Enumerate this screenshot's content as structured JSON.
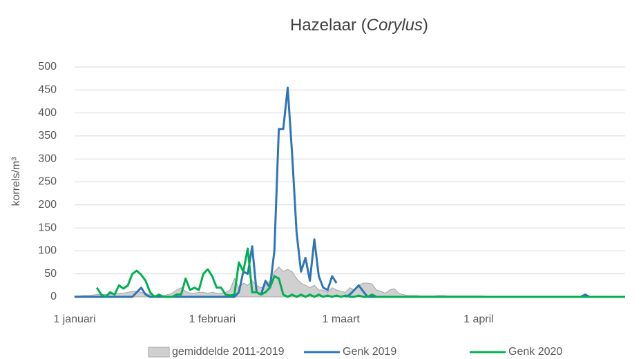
{
  "chart_data": {
    "type": "line",
    "title": [
      "Hazelaar (",
      "Corylus",
      ")"
    ],
    "y_label": "korrels/m³",
    "categories": [
      "1 januari",
      null,
      null,
      null,
      null,
      null,
      null,
      null,
      null,
      null,
      null,
      null,
      null,
      null,
      null,
      null,
      null,
      null,
      null,
      null,
      null,
      null,
      null,
      null,
      null,
      null,
      null,
      null,
      null,
      null,
      null,
      "1 februari",
      null,
      null,
      null,
      null,
      null,
      null,
      null,
      null,
      null,
      null,
      null,
      null,
      null,
      null,
      null,
      null,
      null,
      null,
      null,
      null,
      null,
      null,
      null,
      null,
      null,
      null,
      null,
      null,
      "1 maart",
      null,
      null,
      null,
      null,
      null,
      null,
      null,
      null,
      null,
      null,
      null,
      null,
      null,
      null,
      null,
      null,
      null,
      null,
      null,
      null,
      null,
      null,
      null,
      null,
      null,
      null,
      null,
      null,
      null,
      null,
      "1 april",
      null,
      null,
      null,
      null,
      null,
      null,
      null,
      null,
      null,
      null,
      null,
      null,
      null,
      null,
      null,
      null,
      null,
      null,
      null,
      null,
      null,
      null,
      null,
      null,
      null,
      null,
      null,
      null,
      null,
      null,
      null,
      null,
      null
    ],
    "series": [
      {
        "name": "gemiddelde 2011-2019",
        "style": "area",
        "color": "#d0d0d0",
        "stroke": "#a6a6a6",
        "values": [
          2,
          2,
          3,
          3,
          4,
          5,
          5,
          5,
          6,
          6,
          8,
          8,
          10,
          12,
          12,
          10,
          8,
          5,
          3,
          3,
          3,
          5,
          8,
          15,
          20,
          12,
          8,
          8,
          10,
          10,
          8,
          10,
          8,
          8,
          10,
          15,
          40,
          20,
          30,
          25,
          35,
          25,
          20,
          25,
          35,
          55,
          65,
          55,
          60,
          55,
          40,
          30,
          25,
          20,
          25,
          15,
          15,
          10,
          20,
          15,
          12,
          10,
          20,
          15,
          25,
          30,
          30,
          28,
          15,
          12,
          8,
          15,
          18,
          8,
          5,
          3,
          3,
          3,
          2,
          2,
          2,
          2,
          3,
          3,
          2,
          2,
          2,
          2,
          2,
          2,
          2,
          2,
          2,
          1,
          1,
          1,
          1,
          1,
          1,
          1,
          1,
          1,
          1,
          1,
          1,
          1,
          0,
          0,
          0,
          0,
          0,
          0,
          0,
          0,
          0,
          0,
          0,
          0,
          0,
          0,
          0,
          0,
          0,
          0,
          0
        ]
      },
      {
        "name": "Genk 2019",
        "style": "line",
        "color": "#2e75b6",
        "values": [
          0,
          0,
          0,
          0,
          0,
          0,
          0,
          0,
          0,
          0,
          0,
          0,
          0,
          0,
          10,
          20,
          5,
          0,
          0,
          0,
          0,
          0,
          0,
          0,
          0,
          0,
          0,
          0,
          0,
          0,
          0,
          0,
          0,
          0,
          0,
          0,
          0,
          10,
          55,
          50,
          110,
          10,
          5,
          35,
          20,
          100,
          365,
          365,
          455,
          310,
          140,
          55,
          85,
          35,
          125,
          45,
          20,
          15,
          45,
          30,
          null,
          0,
          5,
          15,
          25,
          12,
          0,
          0,
          0,
          0,
          0,
          0,
          0,
          0,
          0,
          0,
          0,
          0,
          0,
          0,
          0,
          0,
          0,
          0,
          0,
          0,
          0,
          0,
          0,
          0,
          0,
          0,
          0,
          0,
          0,
          0,
          0,
          0,
          0,
          0,
          0,
          0,
          0,
          0,
          0,
          0,
          0,
          0,
          0,
          0,
          0,
          0,
          0,
          0,
          0,
          5,
          0,
          0,
          0,
          0,
          0,
          0,
          0,
          0,
          0
        ]
      },
      {
        "name": "Genk 2020",
        "style": "line",
        "color": "#00b050",
        "values": [
          null,
          null,
          null,
          null,
          null,
          20,
          5,
          0,
          10,
          5,
          25,
          18,
          25,
          50,
          57,
          48,
          35,
          10,
          0,
          5,
          0,
          0,
          0,
          5,
          5,
          40,
          15,
          20,
          15,
          50,
          60,
          45,
          20,
          20,
          5,
          3,
          5,
          75,
          55,
          105,
          10,
          10,
          5,
          10,
          20,
          45,
          40,
          5,
          0,
          5,
          0,
          5,
          0,
          5,
          0,
          5,
          0,
          3,
          0,
          3,
          0,
          3,
          0,
          0,
          3,
          0,
          0,
          5,
          0,
          0,
          0,
          0,
          0,
          0,
          0,
          0,
          0,
          0,
          0,
          0,
          0,
          0,
          0,
          0,
          0,
          0,
          0,
          0,
          0,
          0,
          0,
          0,
          0,
          0,
          0,
          0,
          0,
          0,
          0,
          0,
          0,
          0,
          0,
          0,
          0,
          0,
          0,
          0,
          0,
          0,
          0,
          0,
          0,
          0,
          0,
          0,
          0,
          0,
          0,
          0,
          0,
          0,
          0,
          0,
          0
        ]
      }
    ],
    "ylim": [
      0,
      500
    ],
    "yticks": [
      0,
      50,
      100,
      150,
      200,
      250,
      300,
      350,
      400,
      450,
      500
    ],
    "grid": true,
    "legend": "bottom"
  }
}
